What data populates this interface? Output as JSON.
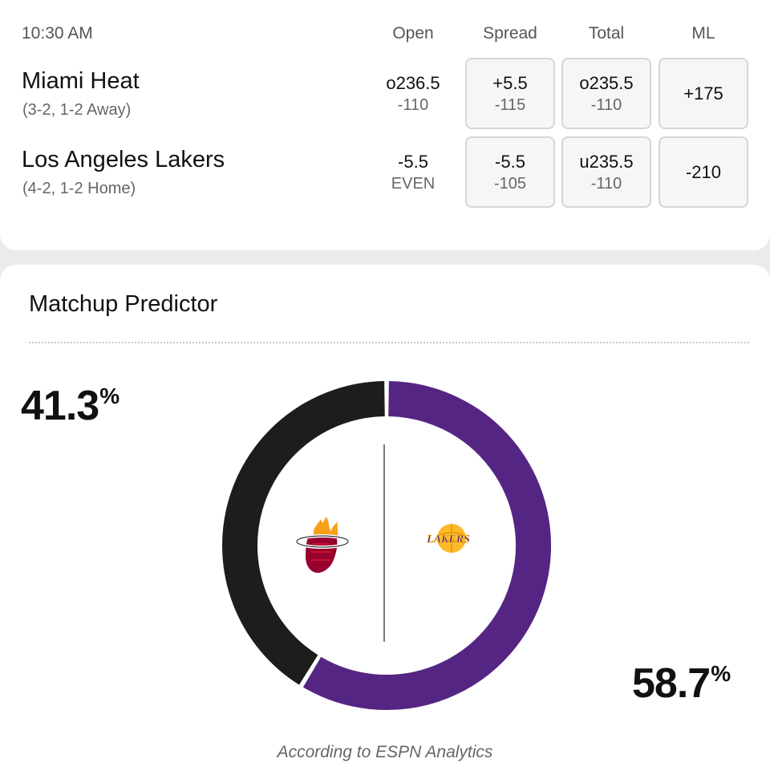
{
  "game": {
    "time": "10:30 AM",
    "headers": {
      "open": "Open",
      "spread": "Spread",
      "total": "Total",
      "ml": "ML"
    },
    "teams": [
      {
        "name": "Miami Heat",
        "record": "(3-2, 1-2 Away)",
        "open": {
          "main": "o236.5",
          "sub": "-110"
        },
        "spread": {
          "main": "+5.5",
          "sub": "-115"
        },
        "total": {
          "main": "o235.5",
          "sub": "-110"
        },
        "ml": "+175"
      },
      {
        "name": "Los Angeles Lakers",
        "record": "(4-2, 1-2 Home)",
        "open": {
          "main": "-5.5",
          "sub": "EVEN"
        },
        "spread": {
          "main": "-5.5",
          "sub": "-105"
        },
        "total": {
          "main": "u235.5",
          "sub": "-110"
        },
        "ml": "-210"
      }
    ]
  },
  "predictor": {
    "title": "Matchup Predictor",
    "away_pct": "41.3",
    "home_pct": "58.7",
    "pct_sign": "%",
    "away_value": 41.3,
    "home_value": 58.7,
    "away_color": "#1d1d1b",
    "home_color": "#552583",
    "away_logo": "heat-logo-icon",
    "home_logo": "lakers-logo-icon",
    "home_logo_text": "LAKERS",
    "caption": "According to ESPN Analytics"
  }
}
